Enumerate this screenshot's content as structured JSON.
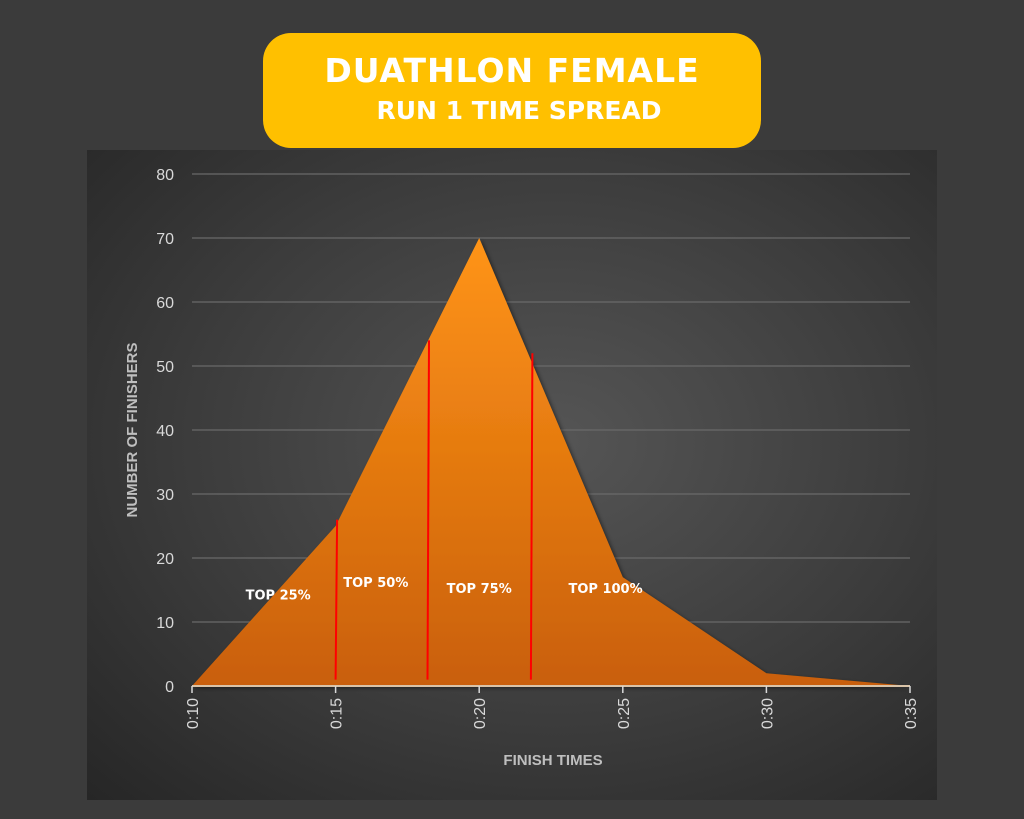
{
  "title": {
    "line1": "DUATHLON FEMALE",
    "line2": "RUN 1 TIME SPREAD"
  },
  "colors": {
    "background": "#3b3b3b",
    "title_box": "#FFC000",
    "area": "#F0850F",
    "marker_lines": "#FF0000"
  },
  "chart_data": {
    "type": "area",
    "xlabel": "FINISH TIMES",
    "ylabel": "NUMBER OF FINISHERS",
    "categories": [
      "0:10",
      "0:15",
      "0:20",
      "0:25",
      "0:30",
      "0:35"
    ],
    "x_minutes": [
      10,
      15,
      20,
      25,
      30,
      35
    ],
    "values": [
      0,
      25,
      70,
      17,
      2,
      0
    ],
    "ylim": [
      0,
      80
    ],
    "yticks": [
      0,
      10,
      20,
      30,
      40,
      50,
      60,
      70,
      80
    ],
    "grid": true,
    "legend": "none",
    "markers": [
      {
        "x_minutes": 15.0,
        "top": 26
      },
      {
        "x_minutes": 18.2,
        "top": 54
      },
      {
        "x_minutes": 21.8,
        "top": 52
      }
    ],
    "annotations": [
      {
        "text": "TOP 25%",
        "x_minutes": 13.0,
        "y": 13.5
      },
      {
        "text": "TOP 50%",
        "x_minutes": 16.4,
        "y": 15.5
      },
      {
        "text": "TOP 75%",
        "x_minutes": 20.0,
        "y": 14.5
      },
      {
        "text": "TOP 100%",
        "x_minutes": 24.4,
        "y": 14.5
      }
    ]
  }
}
